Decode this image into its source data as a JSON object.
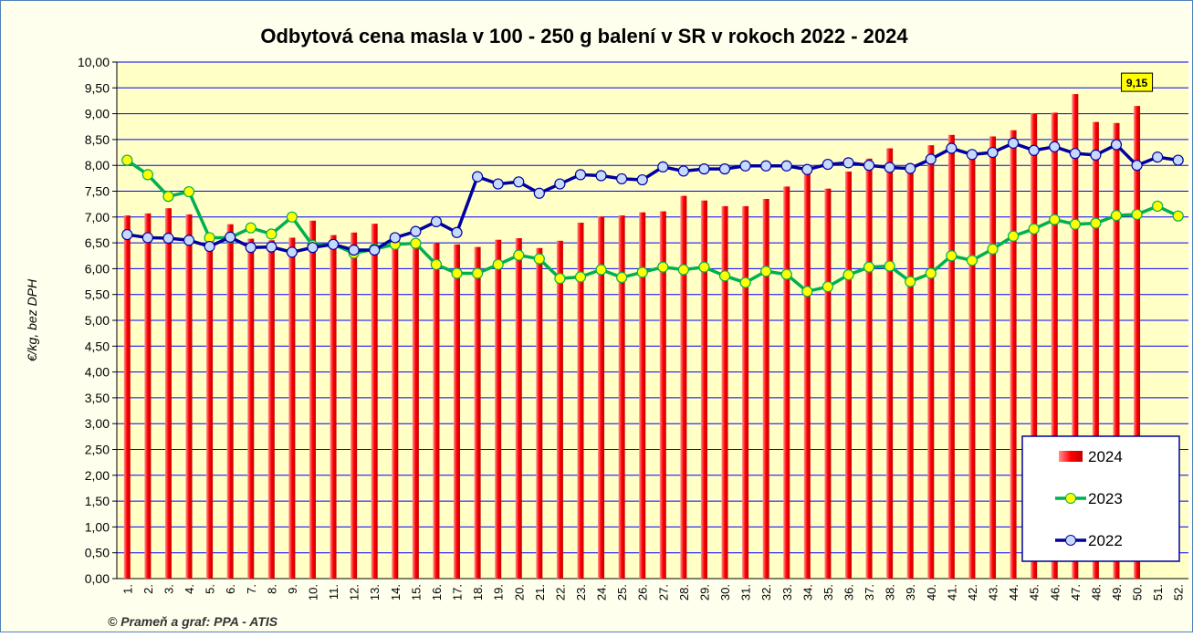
{
  "chart_data": {
    "type": "bar_line",
    "title": "Odbytová cena masla v 100 - 250 g balení v SR v rokoch 2022 - 2024",
    "y_label": "€/kg, bez DPH",
    "source": "© Prameň a graf: PPA - ATIS",
    "categories": [
      "1.",
      "2.",
      "3.",
      "4.",
      "5.",
      "6.",
      "7.",
      "8.",
      "9.",
      "10.",
      "11.",
      "12.",
      "13.",
      "14.",
      "15.",
      "16.",
      "17.",
      "18.",
      "19.",
      "20.",
      "21.",
      "22.",
      "23.",
      "24.",
      "25.",
      "26.",
      "27.",
      "28.",
      "29.",
      "30.",
      "31.",
      "32.",
      "33.",
      "34.",
      "35.",
      "36.",
      "37.",
      "38.",
      "39.",
      "40.",
      "41.",
      "42.",
      "43.",
      "44.",
      "45.",
      "46.",
      "47.",
      "48.",
      "49.",
      "50.",
      "51.",
      "52."
    ],
    "ylim": [
      0,
      10
    ],
    "yticks": [
      {
        "value": 0,
        "label": "0,00"
      },
      {
        "value": 0.5,
        "label": "0,50"
      },
      {
        "value": 1,
        "label": "1,00"
      },
      {
        "value": 1.5,
        "label": "1,50"
      },
      {
        "value": 2,
        "label": "2,00"
      },
      {
        "value": 2.5,
        "label": "2,50"
      },
      {
        "value": 3,
        "label": "3,00"
      },
      {
        "value": 3.5,
        "label": "3,50"
      },
      {
        "value": 4,
        "label": "4,00"
      },
      {
        "value": 4.5,
        "label": "4,50"
      },
      {
        "value": 5,
        "label": "5,00"
      },
      {
        "value": 5.5,
        "label": "5,50"
      },
      {
        "value": 6,
        "label": "6,00"
      },
      {
        "value": 6.5,
        "label": "6,50"
      },
      {
        "value": 7,
        "label": "7,00"
      },
      {
        "value": 7.5,
        "label": "7,50"
      },
      {
        "value": 8,
        "label": "8,00"
      },
      {
        "value": 8.5,
        "label": "8,50"
      },
      {
        "value": 9,
        "label": "9,00"
      },
      {
        "value": 9.5,
        "label": "9,50"
      },
      {
        "value": 10,
        "label": "10,00"
      }
    ],
    "grid": true,
    "legend": "lower right",
    "series": [
      {
        "name": "2024",
        "kind": "bar",
        "color": "#ff0000",
        "values": [
          7.03,
          7.07,
          7.17,
          7.05,
          6.45,
          6.86,
          6.58,
          6.55,
          6.6,
          6.93,
          6.65,
          6.7,
          6.87,
          6.45,
          6.55,
          6.5,
          6.47,
          6.42,
          6.56,
          6.59,
          6.4,
          6.54,
          6.89,
          7.01,
          7.03,
          7.09,
          7.11,
          7.41,
          7.32,
          7.21,
          7.21,
          7.35,
          7.59,
          7.87,
          7.55,
          7.88,
          8.13,
          8.33,
          7.9,
          8.39,
          8.59,
          8.18,
          8.56,
          8.68,
          9.01,
          9.02,
          9.38,
          8.84,
          8.82,
          9.15,
          null,
          null
        ],
        "value_labels": [
          null,
          null,
          null,
          null,
          null,
          null,
          null,
          null,
          null,
          null,
          null,
          null,
          null,
          null,
          null,
          null,
          null,
          null,
          null,
          null,
          null,
          null,
          null,
          null,
          null,
          null,
          null,
          null,
          null,
          null,
          null,
          null,
          null,
          null,
          null,
          null,
          null,
          null,
          null,
          null,
          null,
          null,
          null,
          null,
          null,
          null,
          null,
          null,
          null,
          "9,15",
          null,
          null
        ]
      },
      {
        "name": "2023",
        "kind": "line",
        "color": "#00b050",
        "marker_color": "#ffff00",
        "values": [
          8.1,
          7.82,
          7.4,
          7.49,
          6.6,
          6.6,
          6.79,
          6.67,
          7.0,
          6.45,
          6.47,
          6.3,
          6.38,
          6.47,
          6.49,
          6.08,
          5.91,
          5.91,
          6.08,
          6.26,
          6.19,
          5.81,
          5.84,
          5.98,
          5.83,
          5.93,
          6.03,
          5.98,
          6.03,
          5.86,
          5.73,
          5.95,
          5.89,
          5.56,
          5.65,
          5.88,
          6.03,
          6.05,
          5.75,
          5.91,
          6.25,
          6.16,
          6.38,
          6.63,
          6.77,
          6.95,
          6.86,
          6.88,
          7.03,
          7.05,
          7.21,
          7.02
        ]
      },
      {
        "name": "2022",
        "kind": "line",
        "color": "#0000a0",
        "marker_color": "#c6d9ff",
        "values": [
          6.66,
          6.6,
          6.59,
          6.55,
          6.43,
          6.61,
          6.41,
          6.42,
          6.32,
          6.41,
          6.47,
          6.36,
          6.36,
          6.6,
          6.72,
          6.91,
          6.7,
          7.78,
          7.64,
          7.68,
          7.46,
          7.64,
          7.82,
          7.8,
          7.74,
          7.72,
          7.97,
          7.89,
          7.93,
          7.93,
          7.99,
          7.99,
          7.99,
          7.92,
          8.02,
          8.05,
          8.0,
          7.96,
          7.94,
          8.12,
          8.33,
          8.21,
          8.25,
          8.43,
          8.29,
          8.36,
          8.23,
          8.2,
          8.4,
          8.0,
          8.16,
          8.1
        ]
      }
    ]
  }
}
